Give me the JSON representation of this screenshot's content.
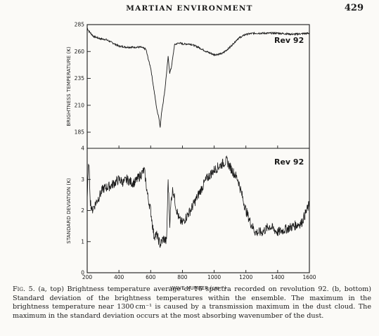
{
  "header": {
    "running_title": "MARTIAN ENVIRONMENT",
    "page_number": "429"
  },
  "figure": {
    "top": {
      "panel_label": "Rev 92",
      "ylabel": "BRIGHTNESS TEMPERATURE (K)",
      "ytick_labels": [
        "285",
        "260",
        "235",
        "210",
        "185"
      ]
    },
    "bottom": {
      "panel_label": "Rev 92",
      "ylabel": "STANDARD DEVIATION (K)",
      "ytick_labels": [
        "4",
        "3",
        "2",
        "1",
        "0"
      ]
    },
    "xlabel": "WAVE NUMBER (cm⁻¹)",
    "xtick_labels": [
      "200",
      "400",
      "600",
      "800",
      "1000",
      "1200",
      "1400",
      "1600"
    ]
  },
  "chart_data": [
    {
      "type": "line",
      "xlabel": "WAVE NUMBER (cm⁻¹)",
      "ylabel": "BRIGHTNESS TEMPERATURE (K)",
      "xlim": [
        200,
        1600
      ],
      "ylim": [
        170,
        285
      ],
      "legend": "Rev 92",
      "x": [
        200,
        210,
        240,
        280,
        320,
        360,
        400,
        450,
        500,
        540,
        570,
        590,
        600,
        610,
        620,
        630,
        640,
        650,
        660,
        670,
        680,
        690,
        700,
        710,
        720,
        730,
        740,
        750,
        760,
        780,
        800,
        850,
        900,
        950,
        1000,
        1050,
        1100,
        1150,
        1200,
        1250,
        1300,
        1400,
        1500,
        1600
      ],
      "y": [
        282,
        279,
        274,
        272,
        271,
        268,
        265,
        264,
        264,
        264,
        262,
        250,
        245,
        235,
        225,
        215,
        205,
        200,
        190,
        205,
        214,
        225,
        240,
        255,
        240,
        245,
        255,
        266,
        267,
        268,
        267,
        267,
        264,
        260,
        257,
        258,
        264,
        272,
        276,
        277,
        277,
        277,
        276,
        277
      ]
    },
    {
      "type": "line",
      "xlabel": "WAVE NUMBER (cm⁻¹)",
      "ylabel": "STANDARD DEVIATION (K)",
      "xlim": [
        200,
        1600
      ],
      "ylim": [
        0,
        4
      ],
      "legend": "Rev 92",
      "x": [
        200,
        210,
        220,
        230,
        250,
        280,
        300,
        350,
        400,
        430,
        450,
        480,
        500,
        530,
        560,
        580,
        600,
        610,
        620,
        640,
        660,
        680,
        700,
        710,
        720,
        730,
        740,
        760,
        780,
        800,
        850,
        900,
        950,
        1000,
        1050,
        1080,
        1100,
        1150,
        1200,
        1230,
        1260,
        1300,
        1350,
        1400,
        1450,
        1500,
        1550,
        1600
      ],
      "y": [
        2.4,
        3.6,
        2.3,
        2.0,
        2.2,
        2.5,
        2.7,
        2.8,
        3.0,
        2.9,
        3.0,
        2.9,
        2.9,
        3.1,
        3.3,
        2.5,
        2.0,
        1.6,
        1.2,
        1.2,
        0.9,
        1.1,
        1.0,
        3.0,
        1.6,
        2.4,
        2.7,
        2.1,
        1.7,
        1.6,
        2.0,
        2.5,
        3.0,
        3.3,
        3.5,
        3.6,
        3.4,
        3.0,
        2.0,
        1.6,
        1.3,
        1.3,
        1.5,
        1.3,
        1.4,
        1.5,
        1.6,
        2.2
      ]
    }
  ],
  "caption": {
    "label": "Fig. 5.",
    "text": "(a, top) Brightness temperature average of 16 spectra recorded on revolution 92. (b, bottom) Standard deviation of the brightness temperatures within the ensemble. The maximum in the brightness temperature near 1300 cm⁻¹ is caused by a transmission maximum in the dust cloud. The maximum in the standard deviation occurs at the most absorbing wavenumber of the dust."
  }
}
